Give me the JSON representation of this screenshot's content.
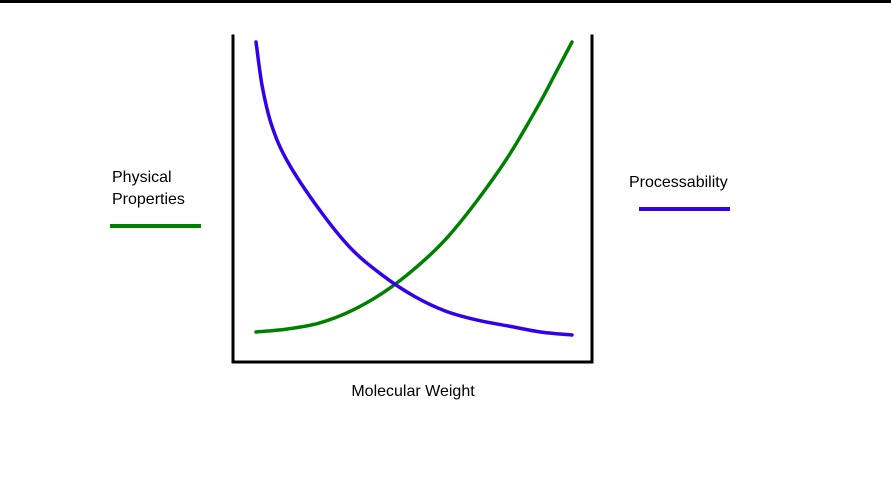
{
  "chart_data": {
    "type": "line",
    "title": "",
    "xlabel": "Molecular Weight",
    "ylabel": "",
    "xlim": [
      0,
      1
    ],
    "ylim": [
      0,
      1
    ],
    "grid": false,
    "legend": "outside-left-and-right",
    "series": [
      {
        "name": "Physical\nProperties",
        "color": "#008000",
        "x": [
          0.0,
          0.1,
          0.2,
          0.3,
          0.4,
          0.5,
          0.6,
          0.7,
          0.8,
          0.9,
          0.95,
          1.0
        ],
        "y": [
          0.03,
          0.04,
          0.06,
          0.1,
          0.16,
          0.24,
          0.34,
          0.47,
          0.62,
          0.8,
          0.9,
          1.0
        ]
      },
      {
        "name": "Processability",
        "color": "#3300ee",
        "x": [
          0.0,
          0.02,
          0.05,
          0.1,
          0.2,
          0.3,
          0.4,
          0.5,
          0.6,
          0.7,
          0.8,
          0.9,
          1.0
        ],
        "y": [
          1.0,
          0.85,
          0.72,
          0.6,
          0.44,
          0.31,
          0.22,
          0.15,
          0.1,
          0.07,
          0.05,
          0.03,
          0.02
        ]
      }
    ]
  }
}
